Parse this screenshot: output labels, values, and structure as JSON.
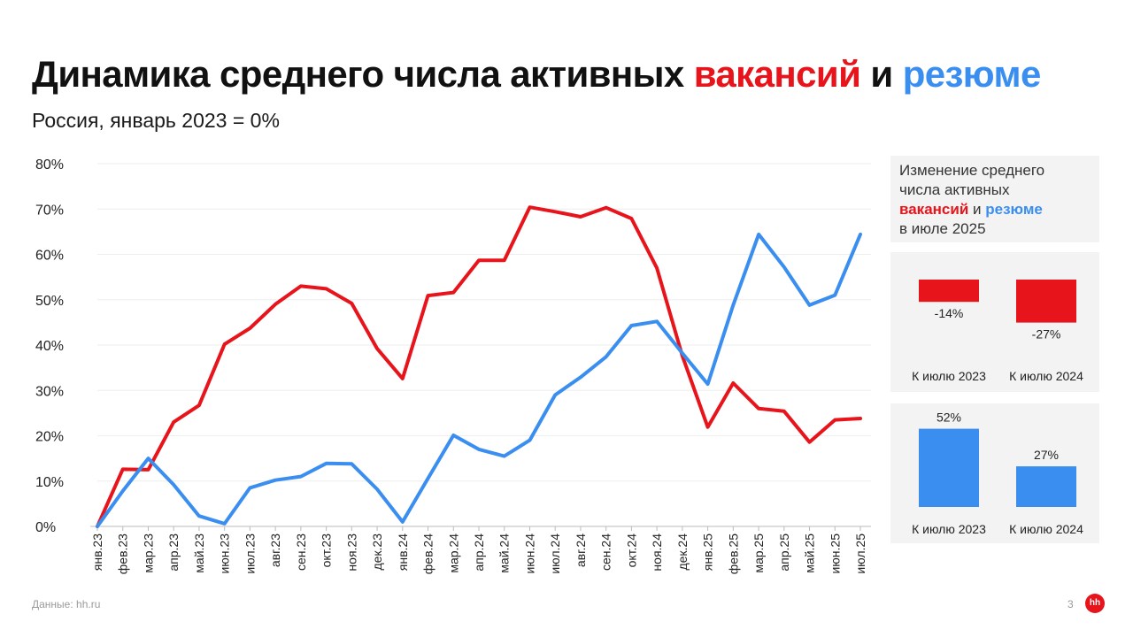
{
  "title": {
    "part1": "Динамика среднего числа активных ",
    "word_vacancies": "вакансий",
    "connector": " и ",
    "word_resumes": "резюме"
  },
  "subtitle": "Россия, январь 2023 = 0%",
  "colors": {
    "vacancies": "#e8141b",
    "resumes": "#3a8ef0",
    "text": "#111111",
    "muted": "#9a9a9a",
    "panel": "#f3f3f3"
  },
  "legend_panel": {
    "line1": "Изменение среднего",
    "line2": "числа активных",
    "vacancies": "вакансий",
    "connector": " и ",
    "resumes": "резюме",
    "line4": "в июле 2025"
  },
  "footer": {
    "source": "Данные: hh.ru",
    "page": "3",
    "logo": "hh"
  },
  "chart_data": [
    {
      "type": "line",
      "title": "Динамика среднего числа активных вакансий и резюме",
      "subtitle": "Россия, январь 2023 = 0%",
      "categories": [
        "янв.23",
        "фев.23",
        "мар.23",
        "апр.23",
        "май.23",
        "июн.23",
        "июл.23",
        "авг.23",
        "сен.23",
        "окт.23",
        "ноя.23",
        "дек.23",
        "янв.24",
        "фев.24",
        "мар.24",
        "апр.24",
        "май.24",
        "июн.24",
        "июл.24",
        "авг.24",
        "сен.24",
        "окт.24",
        "ноя.24",
        "дек.24",
        "янв.25",
        "фев.25",
        "мар.25",
        "апр.25",
        "май.25",
        "июн.25",
        "июл.25"
      ],
      "series": [
        {
          "name": "вакансий",
          "color": "#e8141b",
          "values": [
            0,
            12.6,
            12.5,
            23,
            26.7,
            40.2,
            43.7,
            49,
            53,
            52.4,
            49.2,
            39.2,
            32.6,
            50.9,
            51.6,
            58.7,
            58.7,
            70.4,
            69.4,
            68.3,
            70.3,
            67.9,
            57,
            37.6,
            21.9,
            31.6,
            26,
            25.4,
            18.6,
            23.5,
            23.8
          ]
        },
        {
          "name": "резюме",
          "color": "#3a8ef0",
          "values": [
            0,
            7.8,
            15,
            9.2,
            2.3,
            0.6,
            8.5,
            10.2,
            11,
            13.9,
            13.8,
            8.2,
            1,
            10.6,
            20.1,
            17,
            15.5,
            19,
            29,
            32.9,
            37.4,
            44.3,
            45.2,
            38.2,
            31.4,
            48.8,
            64.4,
            57.2,
            48.8,
            51,
            64.4
          ]
        }
      ],
      "ylim": [
        0,
        80
      ],
      "yticks": [
        0,
        10,
        20,
        30,
        40,
        50,
        60,
        70,
        80
      ],
      "ytick_labels": [
        "0%",
        "10%",
        "20%",
        "30%",
        "40%",
        "50%",
        "60%",
        "70%",
        "80%"
      ],
      "grid": true,
      "xlabel": "",
      "ylabel": ""
    },
    {
      "type": "bar",
      "title": "",
      "categories": [
        "К июлю 2023",
        "К июлю 2024"
      ],
      "values": [
        -14,
        -27
      ],
      "value_labels": [
        "-14%",
        "-27%"
      ],
      "color": "#e8141b",
      "ylim": [
        -40,
        40
      ]
    },
    {
      "type": "bar",
      "title": "",
      "categories": [
        "К июлю 2023",
        "К июлю 2024"
      ],
      "values": [
        52,
        27
      ],
      "value_labels": [
        "52%",
        "27%"
      ],
      "color": "#3a8ef0",
      "ylim": [
        0,
        60
      ]
    }
  ]
}
